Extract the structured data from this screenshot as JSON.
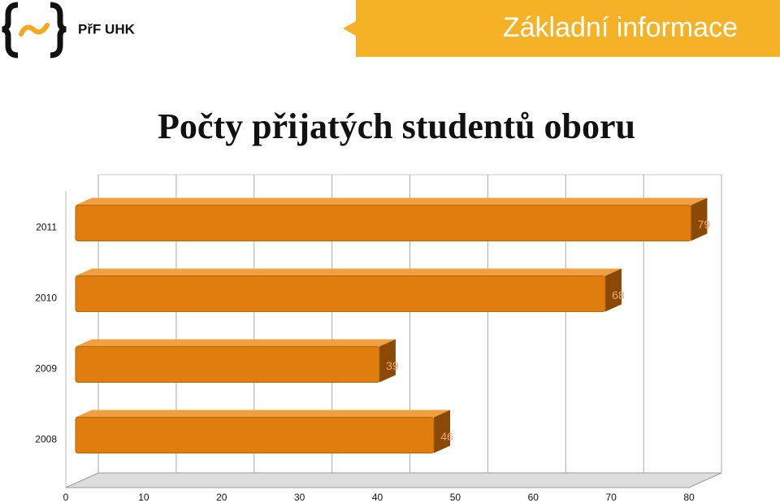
{
  "header": {
    "logo_text": "PřF UHK",
    "section": "Základní informace"
  },
  "chart_data": {
    "type": "bar",
    "orientation": "horizontal",
    "title": "Počty přijatých studentů oboru",
    "categories": [
      "2011",
      "2010",
      "2009",
      "2008"
    ],
    "values": [
      79,
      68,
      39,
      46
    ],
    "color": "#df7e0e",
    "xlim": [
      0,
      80
    ],
    "xticks": [
      0,
      10,
      20,
      30,
      40,
      50,
      60,
      70,
      80
    ],
    "grid": true
  }
}
